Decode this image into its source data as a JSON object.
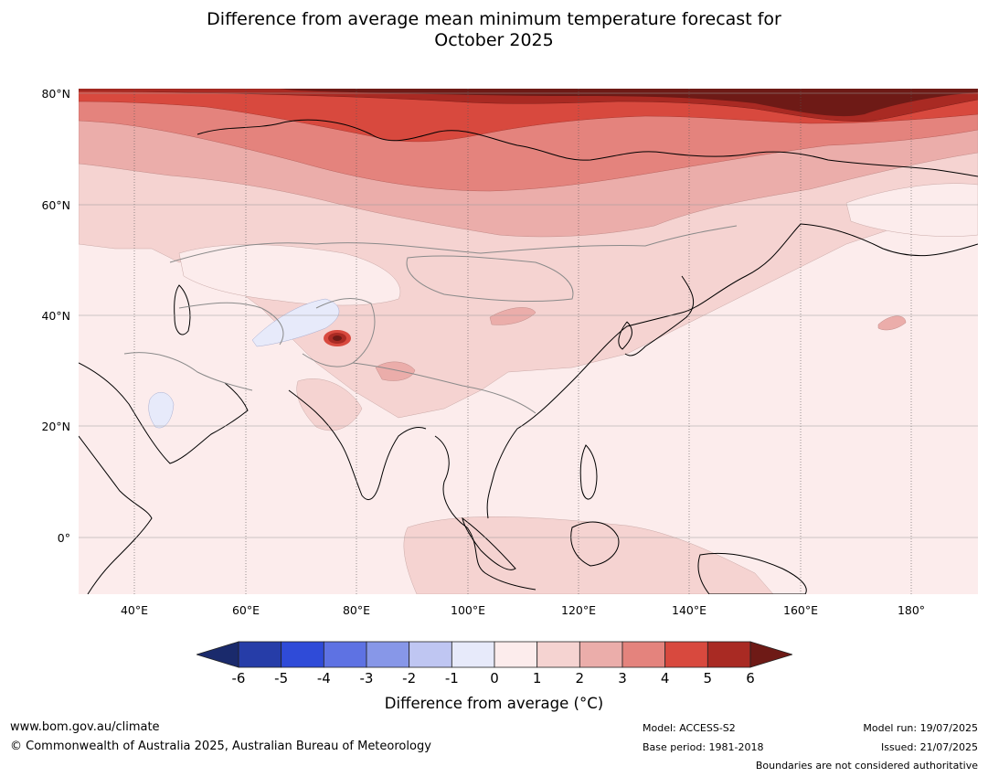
{
  "title_line1": "Difference from average mean minimum temperature forecast for",
  "title_line2": "October 2025",
  "lat_labels": [
    "80°N",
    "60°N",
    "40°N",
    "20°N",
    "0°"
  ],
  "lon_labels": [
    "40°E",
    "60°E",
    "80°E",
    "100°E",
    "120°E",
    "140°E",
    "160°E",
    "180°"
  ],
  "colorbar": {
    "ticks": [
      "-6",
      "-5",
      "-4",
      "-3",
      "-2",
      "-1",
      "0",
      "1",
      "2",
      "3",
      "4",
      "5",
      "6"
    ],
    "colors": [
      "#263da8",
      "#2f4bd8",
      "#5e72e3",
      "#8797e8",
      "#bfc6f2",
      "#e7eafa",
      "#fcecec",
      "#f5d3d1",
      "#ebadaa",
      "#e4837d",
      "#d8493e",
      "#a92a23"
    ],
    "extend_low_color": "#1a2a6c",
    "extend_high_color": "#6e1a16",
    "label": "Difference from average (°C)"
  },
  "footer": {
    "website": "www.bom.gov.au/climate",
    "copyright": "© Commonwealth of Australia 2025, Australian Bureau of Meteorology",
    "model": "Model: ACCESS-S2",
    "base_period": "Base period: 1981-2018",
    "model_run": "Model run: 19/07/2025",
    "issued": "Issued: 21/07/2025",
    "disclaimer": "Boundaries are not considered authoritative"
  }
}
